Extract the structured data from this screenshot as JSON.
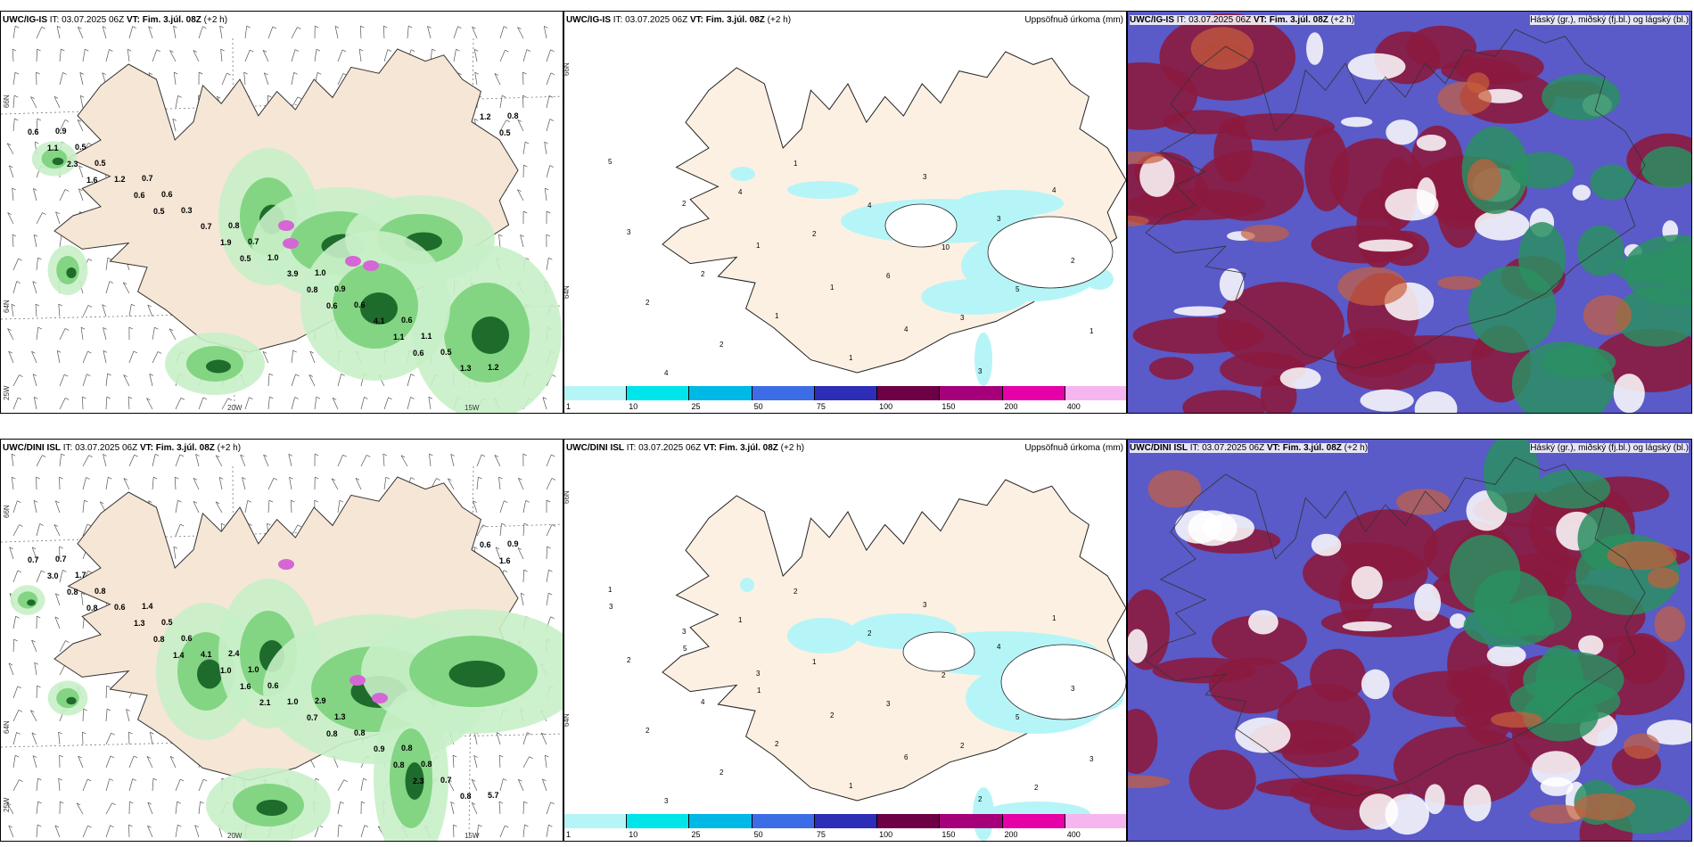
{
  "rows": [
    {
      "id": "top",
      "model": "UWC/IG-IS",
      "it_label": "IT:",
      "it_value": "03.07.2025 06Z",
      "vt_label": "VT:",
      "vt_value": "Fim. 3.júl. 08Z",
      "lead": "(+2 h)",
      "precip_title": "Uppsöfnuð úrkoma (mm)",
      "cloud_title": "Háský (gr.), miðský (fj.bl.) og lágský (bl.)",
      "lat_labels": [
        "66N",
        "64N",
        "25W"
      ],
      "lon_labels": [
        "20W",
        "15W"
      ],
      "wind_values": [
        "0.9",
        "0.7",
        "0.8",
        "1.0",
        "0.6",
        "1.2",
        "0.5",
        "0.6",
        "0.7",
        "0.9",
        "1.1",
        "0.8",
        "0.5",
        "0.3",
        "1.0",
        "0.6",
        "0.5",
        "0.6",
        "1.2",
        "0.7",
        "3.9",
        "4.1",
        "1.3",
        "1.1",
        "0.6",
        "1.9",
        "0.8",
        "1.1",
        "1.2",
        "2.3",
        "0.5",
        "0.5",
        "0.6",
        "0.6",
        "0.5",
        "1.6"
      ],
      "precip_values": [
        "5",
        "2",
        "1",
        "1",
        "4",
        "3",
        "4",
        "3",
        "2",
        "1",
        "1",
        "3",
        "3",
        "2",
        "2",
        "2",
        "1",
        "4",
        "10",
        "5",
        "1",
        "4",
        "4",
        "2",
        "6",
        "3"
      ]
    },
    {
      "id": "bottom",
      "model": "UWC/DINI ISL",
      "it_label": "IT:",
      "it_value": "03.07.2025 06Z",
      "vt_label": "VT:",
      "vt_value": "Fim. 3.júl. 08Z",
      "lead": "(+2 h)",
      "precip_title": "Uppsöfnuð úrkoma (mm)",
      "cloud_title": "Háský (gr.), miðský (fj.bl.) og lágský (bl.)",
      "lat_labels": [
        "66N",
        "64N",
        "25W"
      ],
      "lon_labels": [
        "20W",
        "15W"
      ],
      "wind_values": [
        "0.7",
        "1.4",
        "2.4",
        "2.9",
        "0.8",
        "5.7",
        "1.7",
        "0.5",
        "1.0",
        "1.3",
        "0.8",
        "0.9",
        "0.8",
        "0.6",
        "0.6",
        "0.8",
        "0.7",
        "0.7",
        "0.6",
        "4.1",
        "1.0",
        "0.9",
        "0.8",
        "3.0",
        "1.3",
        "1.0",
        "0.7",
        "0.8",
        "0.6",
        "0.8",
        "0.8",
        "1.6",
        "0.8",
        "2.3",
        "1.6",
        "0.8",
        "1.4",
        "2.1"
      ],
      "precip_values": [
        "1",
        "3",
        "3",
        "2",
        "6",
        "2",
        "1",
        "2",
        "4",
        "2",
        "1",
        "3",
        "4",
        "3",
        "2",
        "2",
        "2",
        "2",
        "2",
        "5",
        "3",
        "3",
        "1",
        "1",
        "3",
        "2",
        "2",
        "3",
        "5",
        "1"
      ]
    }
  ],
  "colorbar": {
    "ticks": [
      "1",
      "10",
      "25",
      "50",
      "75",
      "100",
      "150",
      "200",
      "400"
    ],
    "colors": [
      "#b6f5f7",
      "#00e5ea",
      "#00b8e6",
      "#3d6de6",
      "#2d2db8",
      "#6e0046",
      "#a5007a",
      "#e600a8",
      "#f5b6f0"
    ]
  },
  "colors": {
    "land": "#f6e6d6",
    "land_precip": "#fcf0e3",
    "precip_light": "#b6f5f7",
    "wind_green_light": "#c8f0c8",
    "wind_green_mid": "#7bd17b",
    "wind_green_dark": "#1f6b2c",
    "wind_magenta": "#d566d5",
    "cloud_blue": "#5a5ac8",
    "cloud_maroon": "#8b1a3f",
    "cloud_green": "#2a8f62",
    "cloud_orange": "#c8603c"
  }
}
